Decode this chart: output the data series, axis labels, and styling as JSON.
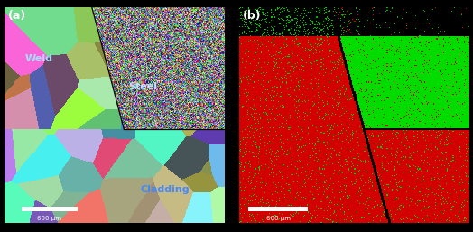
{
  "fig_width": 5.24,
  "fig_height": 2.57,
  "dpi": 100,
  "label_a": "(a)",
  "label_b": "(b)",
  "weld_label": "Weld",
  "steel_label": "Steel",
  "cladding_label": "Cladding",
  "scalebar_text": "600 μm",
  "bg_color": "#000000",
  "label_color": "white",
  "weld_text_color": "#aaddff",
  "steel_text_color": "#ccddff",
  "cladding_text_color": "#4488ff",
  "seed": 42
}
